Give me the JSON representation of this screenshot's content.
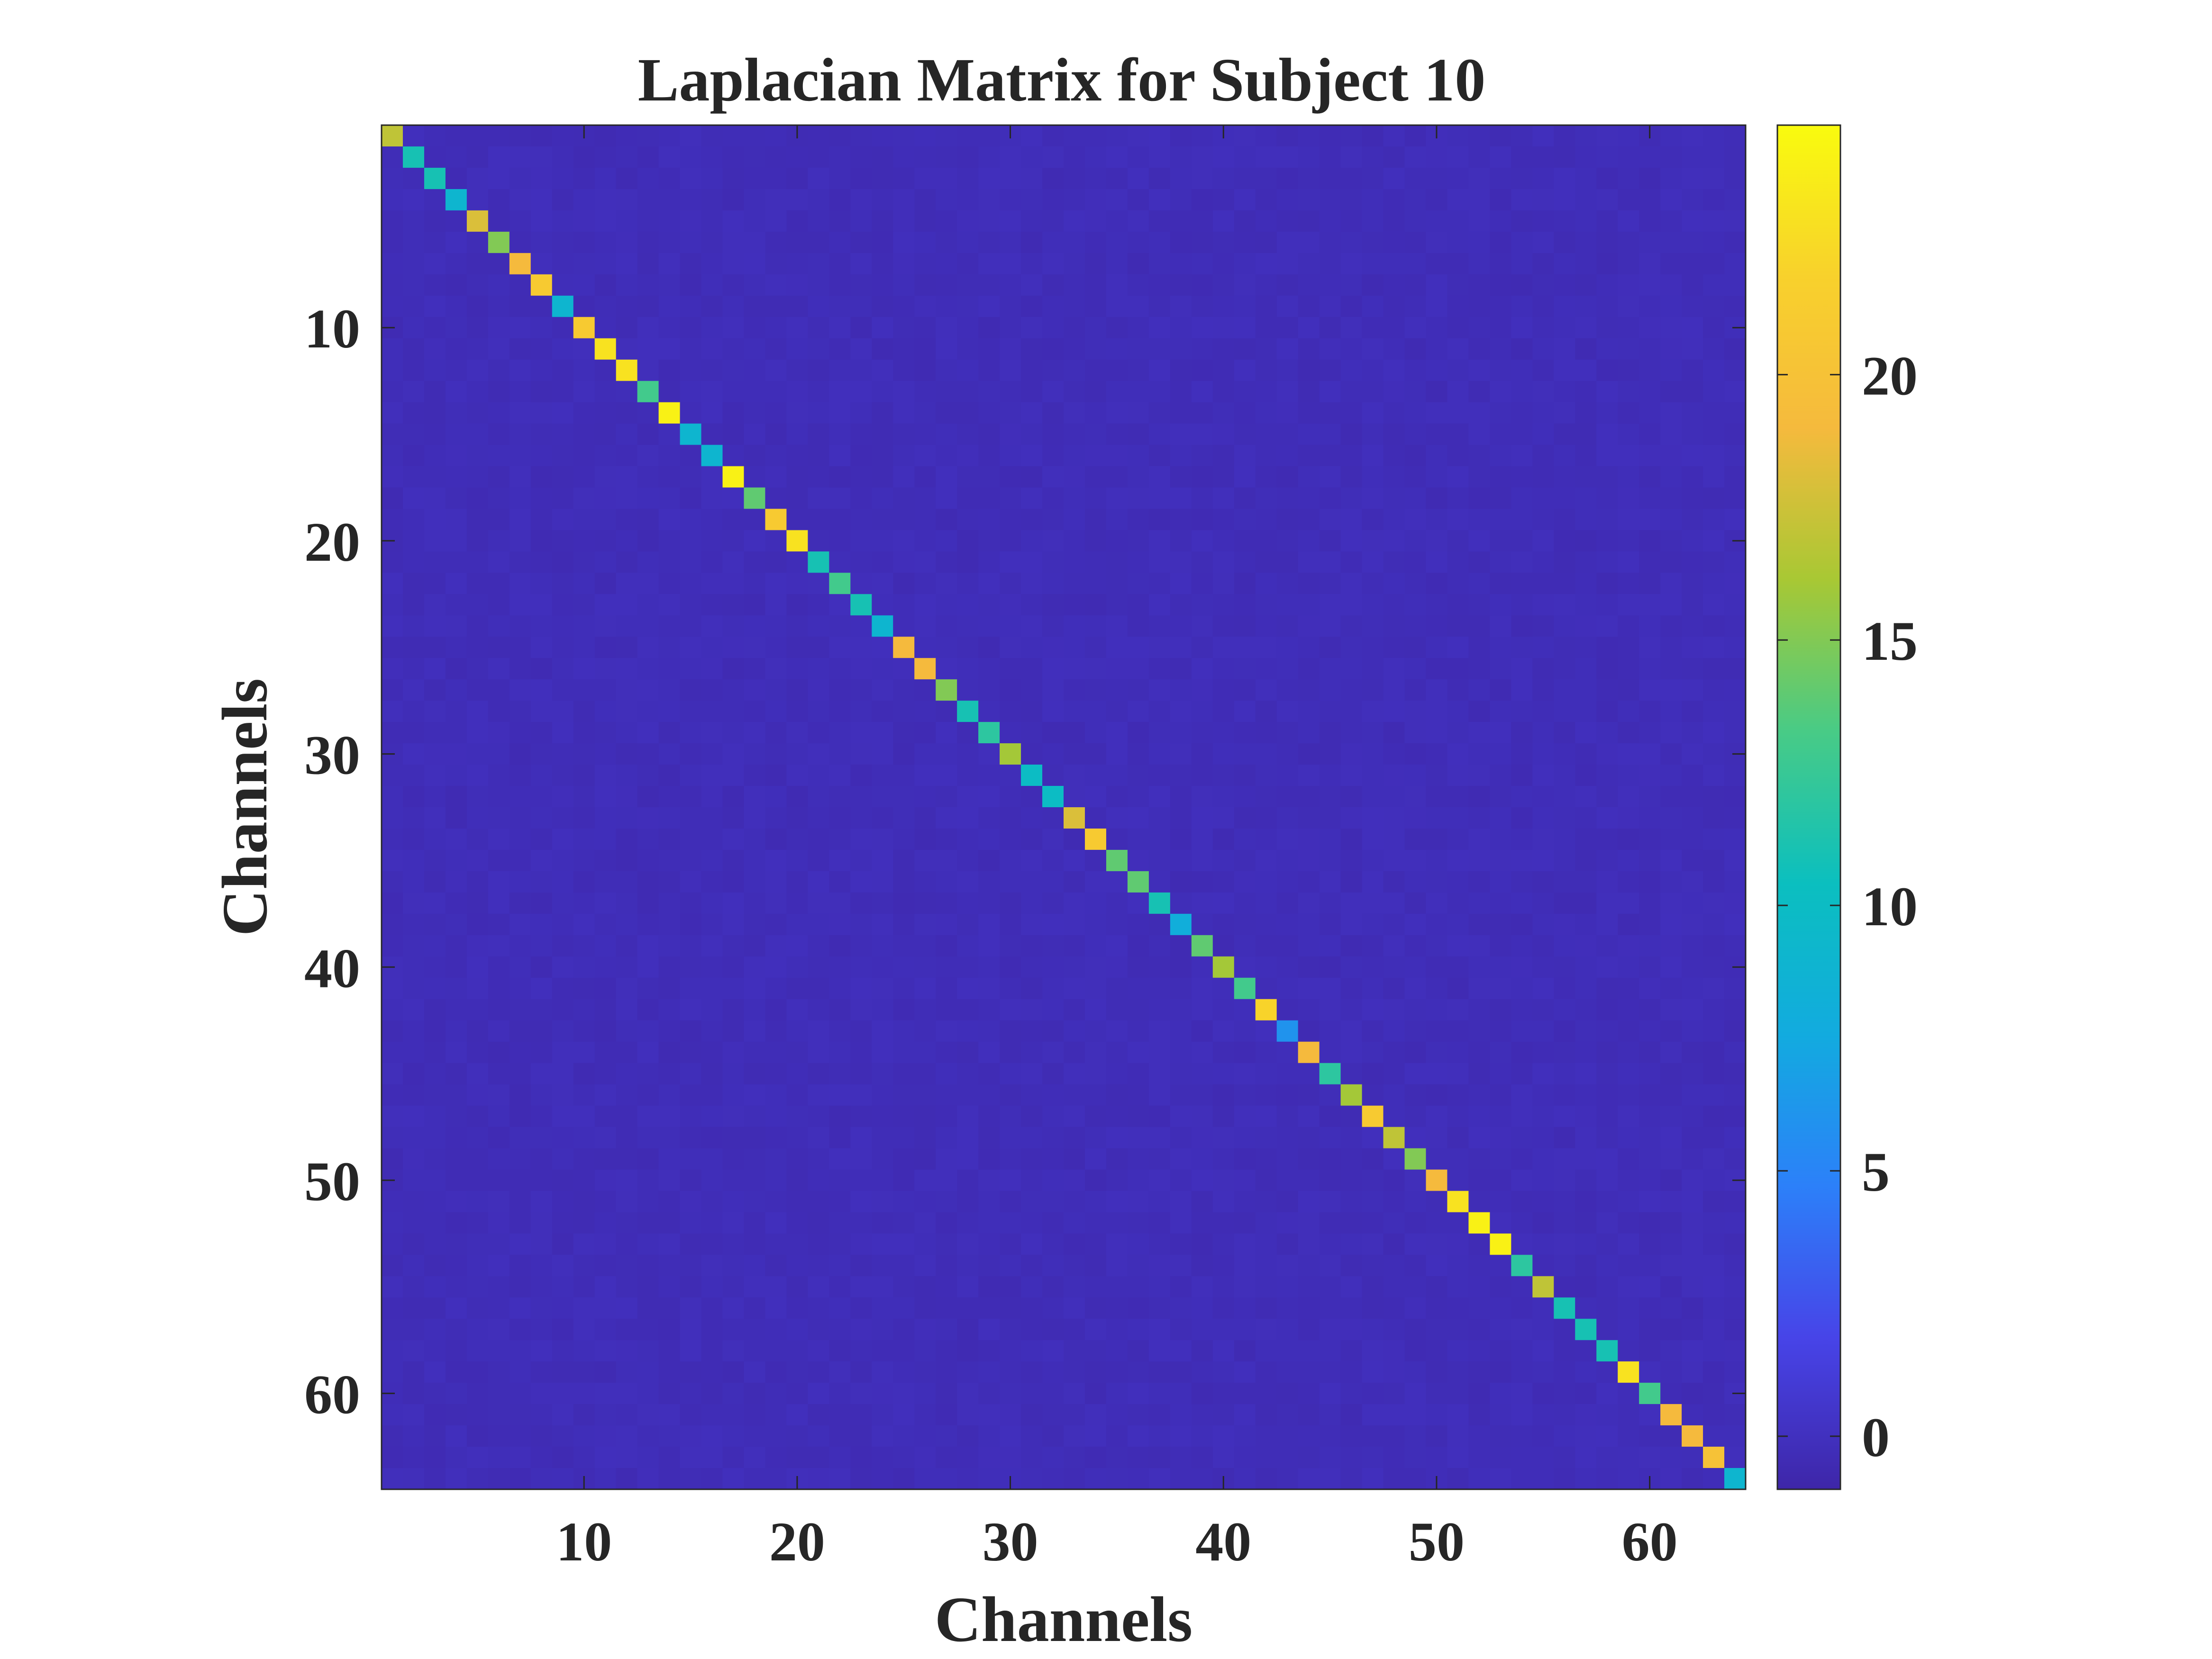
{
  "chart_data": {
    "type": "heatmap",
    "title": "Laplacian Matrix for Subject 10",
    "xlabel": "Channels",
    "ylabel": "Channels",
    "n": 64,
    "x_ticks": [
      10,
      20,
      30,
      40,
      50,
      60
    ],
    "y_ticks": [
      10,
      20,
      30,
      40,
      50,
      60
    ],
    "colorbar": {
      "ticks": [
        0,
        5,
        10,
        15,
        20
      ],
      "range": [
        -1,
        24.7
      ],
      "colormap": "parula",
      "colors": [
        "#3e26a8",
        "#4744e8",
        "#2c80f9",
        "#12abdf",
        "#0bbfbf",
        "#48cb86",
        "#a8c834",
        "#f5ba3d",
        "#f8d12c",
        "#f9fb0e"
      ]
    },
    "off_diagonal_approx": -0.2,
    "diagonal_values": [
      17,
      11,
      11,
      9,
      18,
      15,
      19,
      21,
      9,
      21,
      23,
      23,
      13,
      24,
      9,
      9,
      24,
      14,
      21,
      23,
      11,
      13,
      11,
      9,
      19,
      19,
      15,
      11,
      12,
      16,
      10,
      10,
      18,
      21,
      14,
      14,
      11,
      8,
      14,
      16,
      13,
      22,
      6,
      19,
      12,
      16,
      21,
      17,
      15,
      19,
      23,
      24,
      24,
      12,
      17,
      11,
      11,
      11,
      23,
      13,
      19,
      19,
      20,
      9
    ]
  }
}
